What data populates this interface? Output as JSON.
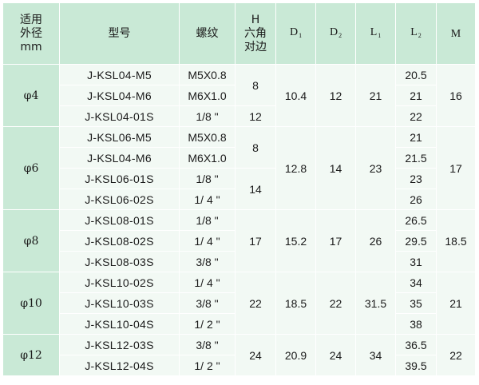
{
  "headers": {
    "od": [
      "适用",
      "外径",
      "mm"
    ],
    "model": "型号",
    "thread": "螺纹",
    "hex": [
      "H",
      "六角",
      "对边"
    ],
    "d1": {
      "base": "D",
      "sub": "1"
    },
    "d2": {
      "base": "D",
      "sub": "2"
    },
    "l1": {
      "base": "L",
      "sub": "1"
    },
    "l2": {
      "base": "L",
      "sub": "2"
    },
    "m": "M"
  },
  "groups": [
    {
      "od": "φ4",
      "d1": "10.4",
      "d2": "12",
      "l1": "21",
      "m": "16",
      "rows": [
        {
          "model": "J-KSL04-M5",
          "thread": "M5X0.8",
          "l2": "20.5"
        },
        {
          "model": "J-KSL04-M6",
          "thread": "M6X1.0",
          "l2": "21"
        },
        {
          "model": "J-KSL04-01S",
          "thread": "1/8 \"",
          "l2": "22"
        }
      ],
      "hex": [
        {
          "value": "8",
          "span": 2
        },
        {
          "value": "12",
          "span": 1
        }
      ]
    },
    {
      "od": "φ6",
      "d1": "12.8",
      "d2": "14",
      "l1": "23",
      "m": "17",
      "rows": [
        {
          "model": "J-KSL06-M5",
          "thread": "M5X0.8",
          "l2": "21"
        },
        {
          "model": "J-KSL04-M6",
          "thread": "M6X1.0",
          "l2": "21.5"
        },
        {
          "model": "J-KSL06-01S",
          "thread": "1/8 \"",
          "l2": "23"
        },
        {
          "model": "J-KSL06-02S",
          "thread": "1/ 4 \"",
          "l2": "26"
        }
      ],
      "hex": [
        {
          "value": "8",
          "span": 2
        },
        {
          "value": "14",
          "span": 2
        }
      ]
    },
    {
      "od": "φ8",
      "d1": "15.2",
      "d2": "17",
      "l1": "26",
      "m": "18.5",
      "rows": [
        {
          "model": "J-KSL08-01S",
          "thread": "1/8 \"",
          "l2": "26.5"
        },
        {
          "model": "J-KSL08-02S",
          "thread": "1/ 4 \"",
          "l2": "29.5"
        },
        {
          "model": "J-KSL08-03S",
          "thread": "3/8 \"",
          "l2": "31"
        }
      ],
      "hex": [
        {
          "value": "17",
          "span": 3
        }
      ]
    },
    {
      "od": "φ10",
      "d1": "18.5",
      "d2": "22",
      "l1": "31.5",
      "m": "21",
      "rows": [
        {
          "model": "J-KSL10-02S",
          "thread": "1/ 4 \"",
          "l2": "34"
        },
        {
          "model": "J-KSL10-03S",
          "thread": "3/8 \"",
          "l2": "35"
        },
        {
          "model": "J-KSL10-04S",
          "thread": "1/ 2 \"",
          "l2": "38"
        }
      ],
      "hex": [
        {
          "value": "22",
          "span": 3
        }
      ]
    },
    {
      "od": "φ12",
      "d1": "20.9",
      "d2": "24",
      "l1": "34",
      "m": "22",
      "rows": [
        {
          "model": "J-KSL12-03S",
          "thread": "3/8 \"",
          "l2": "36.5"
        },
        {
          "model": "J-KSL12-04S",
          "thread": "1/ 2 \"",
          "l2": "39.5"
        }
      ],
      "hex": [
        {
          "value": "24",
          "span": 2
        }
      ]
    }
  ]
}
